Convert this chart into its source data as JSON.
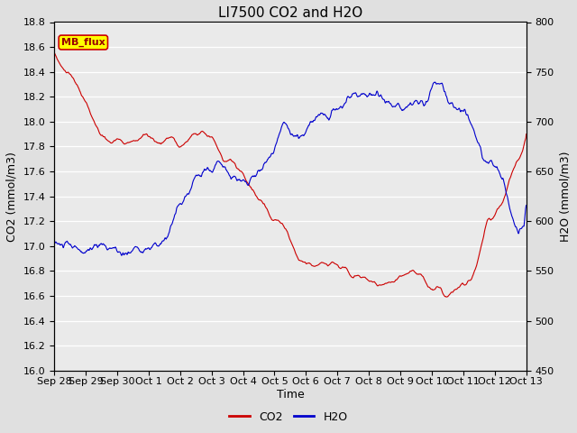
{
  "title": "LI7500 CO2 and H2O",
  "xlabel": "Time",
  "ylabel_left": "CO2 (mmol/m3)",
  "ylabel_right": "H2O (mmol/m3)",
  "co2_ylim": [
    16.0,
    18.8
  ],
  "h2o_ylim": [
    450,
    800
  ],
  "co2_color": "#CC0000",
  "h2o_color": "#0000CC",
  "outer_bg_color": "#E0E0E0",
  "plot_bg_color": "#EAEAEA",
  "annotation_text": "MB_flux",
  "annotation_bg": "#FFFF00",
  "annotation_border": "#CC0000",
  "x_tick_labels": [
    "Sep 28",
    "Sep 29",
    "Sep 30",
    "Oct 1",
    "Oct 2",
    "Oct 3",
    "Oct 4",
    "Oct 5",
    "Oct 6",
    "Oct 7",
    "Oct 8",
    "Oct 9",
    "Oct 10",
    "Oct 11",
    "Oct 12",
    "Oct 13"
  ],
  "x_tick_positions": [
    0,
    1,
    2,
    3,
    4,
    5,
    6,
    7,
    8,
    9,
    10,
    11,
    12,
    13,
    14,
    15
  ],
  "n_points": 3000,
  "title_fontsize": 11,
  "axis_fontsize": 9,
  "tick_fontsize": 8,
  "legend_fontsize": 9
}
